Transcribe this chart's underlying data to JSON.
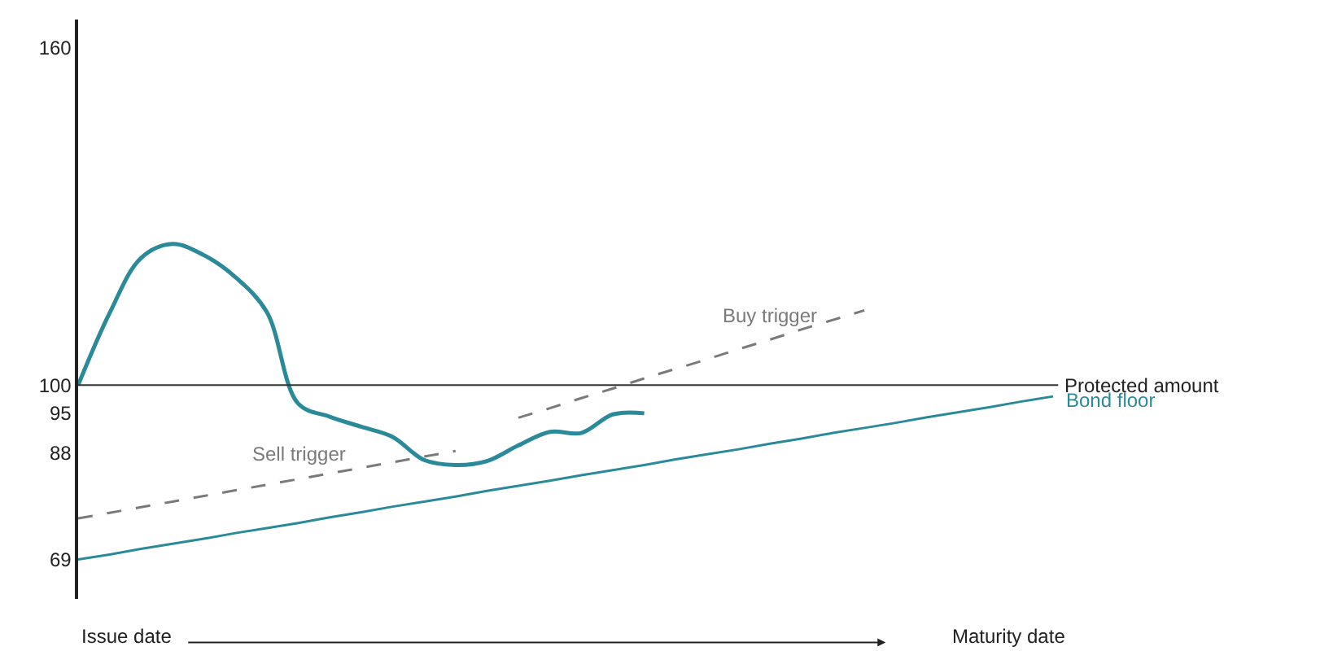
{
  "chart_data": {
    "type": "line",
    "categories": [
      null,
      null,
      null,
      null,
      null,
      null,
      null,
      null,
      null,
      null,
      null,
      null,
      null,
      null,
      null,
      null,
      null,
      null,
      null,
      null,
      null,
      null,
      null,
      null,
      null,
      null,
      null,
      null,
      null,
      null,
      null,
      null
    ],
    "series": [
      {
        "color": "#2a8a9a",
        "values": [
          100,
          112.8,
          122.6,
          125.1,
          123.1,
          119.2,
          113,
          96.7,
          94.4,
          92.6,
          90.8,
          86.7,
          85.8,
          86.5,
          89.3,
          91.7,
          91.5,
          94.8,
          95,
          null,
          null,
          null,
          null,
          null,
          null,
          null,
          null,
          null,
          null,
          null,
          null,
          null
        ]
      },
      {
        "name": "Sell trigger",
        "color": "#7a7a7a",
        "line_style": "dashed",
        "values": [
          76.3,
          77.3,
          78.3,
          79.3,
          80.3,
          81.3,
          82.3,
          83.3,
          84.3,
          85.3,
          86.3,
          87.3,
          88.3,
          null,
          null,
          null,
          null,
          null,
          null,
          null,
          null,
          null,
          null,
          null,
          null,
          null,
          null,
          null,
          null,
          null,
          null,
          null
        ]
      },
      {
        "name": "Buy trigger",
        "color": "#7a7a7a",
        "line_style": "dashed",
        "values": [
          null,
          null,
          null,
          null,
          null,
          null,
          null,
          null,
          null,
          null,
          null,
          null,
          null,
          null,
          94.2,
          95.9,
          97.7,
          99.4,
          101.2,
          102.9,
          104.6,
          106.4,
          108.1,
          109.9,
          111.6,
          113.3,
          null,
          null,
          null,
          null,
          null,
          null
        ]
      },
      {
        "name": "Bond floor",
        "color": "#2a8a9a",
        "values": [
          69.0,
          69.9,
          70.9,
          71.8,
          72.7,
          73.7,
          74.6,
          75.5,
          76.5,
          77.4,
          78.4,
          79.3,
          80.2,
          81.2,
          82.1,
          83.0,
          84.0,
          84.9,
          85.8,
          86.8,
          87.7,
          88.6,
          89.6,
          90.5,
          91.5,
          92.4,
          93.3,
          94.3,
          95.2,
          96.1,
          97.1,
          98.0
        ]
      }
    ],
    "ylim": [
      62,
      165
    ],
    "yticks": [
      69,
      88,
      95,
      100,
      160
    ],
    "ref_lines": [
      {
        "axis": "y",
        "value": 100,
        "label": "Protected amount",
        "color": "#333333"
      }
    ],
    "annotations": [
      "Issue date",
      "Maturity date"
    ],
    "tick_labels": "y",
    "legend": false,
    "marker": "none",
    "line_style": "solid"
  }
}
